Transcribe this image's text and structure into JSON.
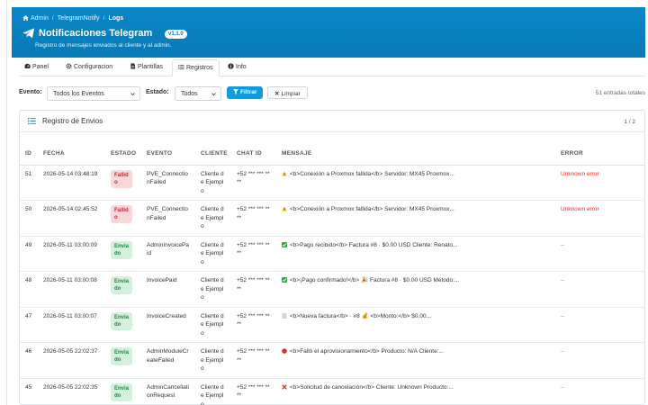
{
  "breadcrumb": [
    "Admin",
    "TelegramNotify",
    "Logs"
  ],
  "header": {
    "title": "Notificaciones Telegram",
    "version": "v1.1.0",
    "subtitle": "Registro de mensajes enviados al cliente y al admin."
  },
  "tabs": [
    {
      "label": "Panel",
      "icon": "dashboard-icon",
      "active": false
    },
    {
      "label": "Configuracion",
      "icon": "gear-icon",
      "active": false
    },
    {
      "label": "Plantillas",
      "icon": "file-icon",
      "active": false
    },
    {
      "label": "Registros",
      "icon": "list-icon",
      "active": true
    },
    {
      "label": "Info",
      "icon": "info-icon",
      "active": false
    }
  ],
  "filters": {
    "evento_label": "Evento:",
    "evento_value": "Todos los Eventos",
    "estado_label": "Estado:",
    "estado_value": "Todos",
    "filter_button": "Filtrar",
    "clear_button": "Limpiar",
    "total": "51 entradas totales"
  },
  "card": {
    "title": "Registro de Envios",
    "page": "1 / 2"
  },
  "table": {
    "columns": [
      "ID",
      "FECHA",
      "ESTADO",
      "EVENTO",
      "CLIENTE",
      "CHAT ID",
      "MENSAJE",
      "ERROR"
    ],
    "rows": [
      {
        "id": "51",
        "fecha": "2026-05-14 03:48:19",
        "estado": "Fallido",
        "evento": "PVE_ConnectionFailed",
        "cliente": "Cliente de Ejemplo",
        "chat": "+52 *** *** ****",
        "msg_icon": "warning-icon",
        "mensaje": "<b>Conexión a Proxmox fallida</b> Servidor: MX45 Proxmox...",
        "error": "Unknown error"
      },
      {
        "id": "50",
        "fecha": "2026-05-14 02:45:52",
        "estado": "Fallido",
        "evento": "PVE_ConnectionFailed",
        "cliente": "Cliente de Ejemplo",
        "chat": "+52 *** *** ****",
        "msg_icon": "warning-icon",
        "mensaje": "<b>Conexión a Proxmox fallida</b> Servidor: MX45 Proxmox...",
        "error": "Unknown error"
      },
      {
        "id": "49",
        "fecha": "2026-05-11 03:00:09",
        "estado": "Enviado",
        "evento": "AdminInvoicePaid",
        "cliente": "Cliente de Ejemplo",
        "chat": "+52 *** *** ****",
        "msg_icon": "check-icon",
        "mensaje": "<b>Pago recibido</b> Factura #8 · $0.00 USD Cliente: Renato...",
        "error": "--"
      },
      {
        "id": "48",
        "fecha": "2026-05-11 03:00:08",
        "estado": "Enviado",
        "evento": "InvoicePaid",
        "cliente": "Cliente de Ejemplo",
        "chat": "+52 *** *** ****",
        "msg_icon": "check-icon",
        "mensaje": "<b>¡Pago confirmado!</b> 🎉 Factura #8 · $0.00 USD Método:...",
        "error": "--"
      },
      {
        "id": "47",
        "fecha": "2026-05-11 03:00:07",
        "estado": "Enviado",
        "evento": "InvoiceCreated",
        "cliente": "Cliente de Ejemplo",
        "chat": "+52 *** *** ****",
        "msg_icon": "document-icon",
        "mensaje": "<b>Nueva factura</b> · #8 💰 <b>Monto:</b> $0.00...",
        "error": "--"
      },
      {
        "id": "46",
        "fecha": "2026-05-05 22:02:37",
        "estado": "Enviado",
        "evento": "AdminModuleCreateFailed",
        "cliente": "Cliente de Ejemplo",
        "chat": "+52 *** *** ****",
        "msg_icon": "red-circle-icon",
        "mensaje": "<b>Falló el aprovisionamiento</b> Producto: N/A Cliente:...",
        "error": "--"
      },
      {
        "id": "45",
        "fecha": "2026-05-05 22:02:35",
        "estado": "Enviado",
        "evento": "AdminCancellationRequest",
        "cliente": "Cliente de Ejemplo",
        "chat": "+52 *** *** ****",
        "msg_icon": "cross-icon",
        "mensaje": "<b>Solicitud de cancelación</b> Cliente: Unknown Producto:...",
        "error": "--"
      }
    ]
  },
  "colors": {
    "header": "#0779b5",
    "primary": "#0d9be0",
    "fail_bg": "#f9d6d8",
    "fail_text": "#c0262d",
    "ok_bg": "#d4efdb",
    "ok_text": "#1f8a43",
    "error_text": "#e0322d"
  }
}
